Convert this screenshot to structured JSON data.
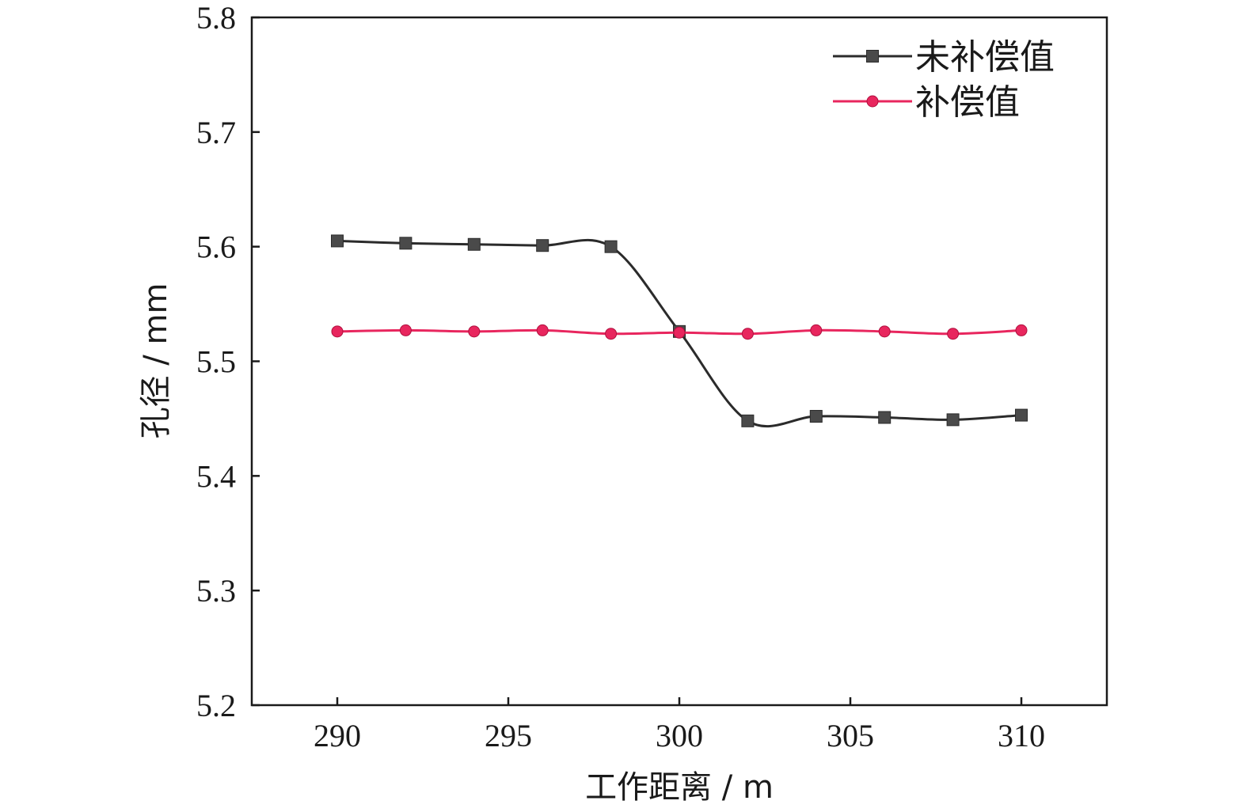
{
  "chart_data": {
    "type": "line",
    "title": "",
    "xlabel": "工作距离 / m",
    "ylabel": "孔径 / mm",
    "xlim": [
      287.5,
      312.5
    ],
    "ylim": [
      5.2,
      5.8
    ],
    "x_ticks": [
      290,
      295,
      300,
      305,
      310
    ],
    "y_ticks": [
      5.2,
      5.3,
      5.4,
      5.5,
      5.6,
      5.7,
      5.8
    ],
    "y_tick_labels": [
      "5.2",
      "5.3",
      "5.4",
      "5.5",
      "5.6",
      "5.7",
      "5.8"
    ],
    "x": [
      290,
      292,
      294,
      296,
      298,
      300,
      302,
      304,
      306,
      308,
      310
    ],
    "grid": false,
    "legend_position": "top-right",
    "series": [
      {
        "name": "未补偿值",
        "color": "#2b2b2b",
        "marker": "square",
        "values": [
          5.605,
          5.603,
          5.602,
          5.601,
          5.6,
          5.526,
          5.448,
          5.452,
          5.451,
          5.449,
          5.453
        ]
      },
      {
        "name": "补偿值",
        "color": "#e8265e",
        "marker": "circle",
        "values": [
          5.526,
          5.527,
          5.526,
          5.527,
          5.524,
          5.525,
          5.524,
          5.527,
          5.526,
          5.524,
          5.527
        ]
      }
    ]
  }
}
